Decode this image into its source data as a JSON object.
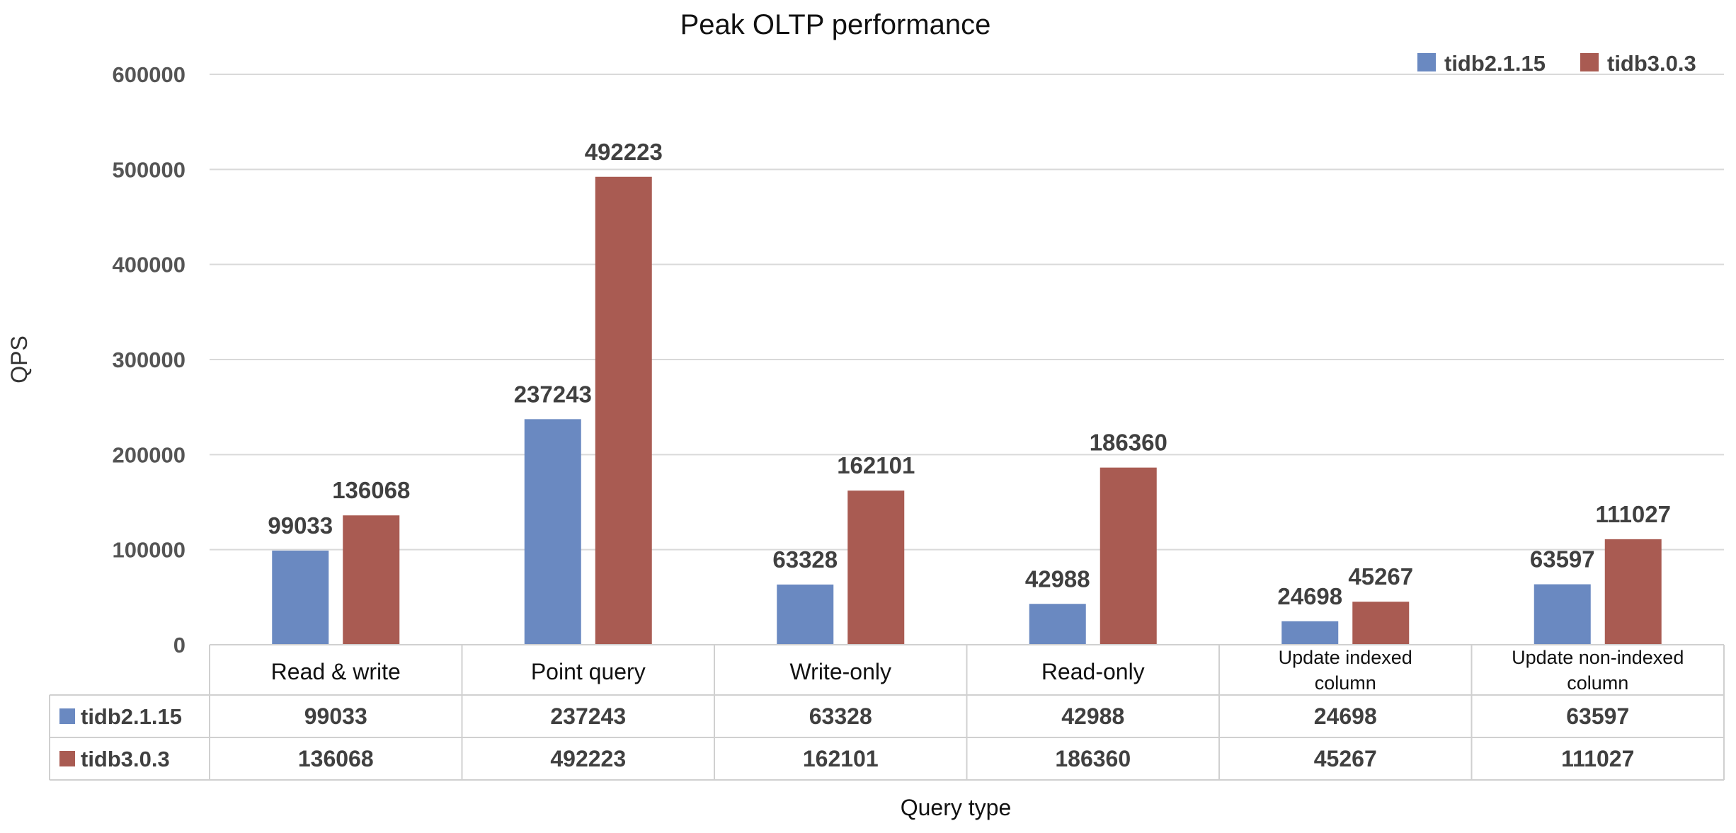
{
  "chart_data": {
    "type": "bar",
    "title": "Peak OLTP performance",
    "xlabel": "Query type",
    "ylabel": "QPS",
    "ylim": [
      0,
      600000
    ],
    "yticks": [
      0,
      100000,
      200000,
      300000,
      400000,
      500000,
      600000
    ],
    "grid": true,
    "legend_position": "top-right",
    "categories": [
      [
        "Read & write"
      ],
      [
        "Point query"
      ],
      [
        "Write-only"
      ],
      [
        "Read-only"
      ],
      [
        "Update indexed",
        "column"
      ],
      [
        "Update non-indexed",
        "column"
      ]
    ],
    "series": [
      {
        "name": "tidb2.1.15",
        "color": "#6a89c1",
        "values": [
          99033,
          237243,
          63328,
          42988,
          24698,
          63597
        ]
      },
      {
        "name": "tidb3.0.3",
        "color": "#a95b52",
        "values": [
          136068,
          492223,
          162101,
          186360,
          45267,
          111027
        ]
      }
    ],
    "data_table": true
  }
}
